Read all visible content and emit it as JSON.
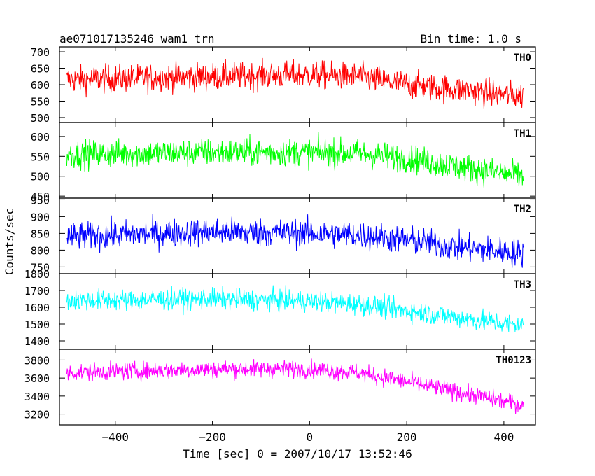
{
  "chart_data": {
    "type": "line",
    "title": "ae071017135246_wam1_trn",
    "subtitle": "Bin time: 1.0 s",
    "xlabel": "Time [sec] 0 = 2007/10/17 13:52:46",
    "ylabel": "Counts/sec",
    "xlim": [
      -515,
      465
    ],
    "x_ticks": [
      -400,
      -200,
      0,
      200,
      400
    ],
    "x_tick_labels": [
      "−400",
      "−200",
      "0",
      "200",
      "400"
    ],
    "data_x_range": [
      -500,
      440
    ],
    "panels": [
      {
        "name": "TH0",
        "color": "#ff0000",
        "ylim": [
          485,
          715
        ],
        "y_ticks": [
          500,
          550,
          600,
          650,
          700
        ],
        "y_tick_labels": [
          "500",
          "550",
          "600",
          "650",
          "700"
        ],
        "trend": [
          [
            -500,
            615
          ],
          [
            -300,
            622
          ],
          [
            0,
            630
          ],
          [
            100,
            625
          ],
          [
            200,
            600
          ],
          [
            300,
            585
          ],
          [
            440,
            565
          ]
        ],
        "noise": 30
      },
      {
        "name": "TH1",
        "color": "#00ff00",
        "ylim": [
          445,
          635
        ],
        "y_ticks": [
          450,
          500,
          550,
          600
        ],
        "y_tick_labels": [
          "450",
          "500",
          "550",
          "600"
        ],
        "trend": [
          [
            -500,
            555
          ],
          [
            -200,
            560
          ],
          [
            0,
            560
          ],
          [
            100,
            557
          ],
          [
            200,
            545
          ],
          [
            300,
            525
          ],
          [
            440,
            500
          ]
        ],
        "noise": 25
      },
      {
        "name": "TH2",
        "color": "#0000ff",
        "ylim": [
          730,
          955
        ],
        "y_ticks": [
          750,
          800,
          850,
          900,
          950
        ],
        "y_tick_labels": [
          "750",
          "800",
          "850",
          "900",
          "950"
        ],
        "trend": [
          [
            -500,
            840
          ],
          [
            -200,
            855
          ],
          [
            0,
            850
          ],
          [
            100,
            845
          ],
          [
            200,
            830
          ],
          [
            300,
            810
          ],
          [
            440,
            790
          ]
        ],
        "noise": 30
      },
      {
        "name": "TH3",
        "color": "#00ffff",
        "ylim": [
          1350,
          1800
        ],
        "y_ticks": [
          1400,
          1500,
          1600,
          1700,
          1800
        ],
        "y_tick_labels": [
          "1400",
          "1500",
          "1600",
          "1700",
          "1800"
        ],
        "trend": [
          [
            -500,
            1640
          ],
          [
            -200,
            1650
          ],
          [
            0,
            1635
          ],
          [
            100,
            1620
          ],
          [
            200,
            1580
          ],
          [
            300,
            1540
          ],
          [
            440,
            1490
          ]
        ],
        "noise": 45
      },
      {
        "name": "TH0123",
        "color": "#ff00ff",
        "ylim": [
          3080,
          3920
        ],
        "y_ticks": [
          3200,
          3400,
          3600,
          3800
        ],
        "y_tick_labels": [
          "3200",
          "3400",
          "3600",
          "3800"
        ],
        "trend": [
          [
            -500,
            3660
          ],
          [
            -200,
            3700
          ],
          [
            0,
            3700
          ],
          [
            100,
            3660
          ],
          [
            200,
            3560
          ],
          [
            300,
            3450
          ],
          [
            440,
            3300
          ]
        ],
        "noise": 70
      }
    ],
    "grid": false
  }
}
